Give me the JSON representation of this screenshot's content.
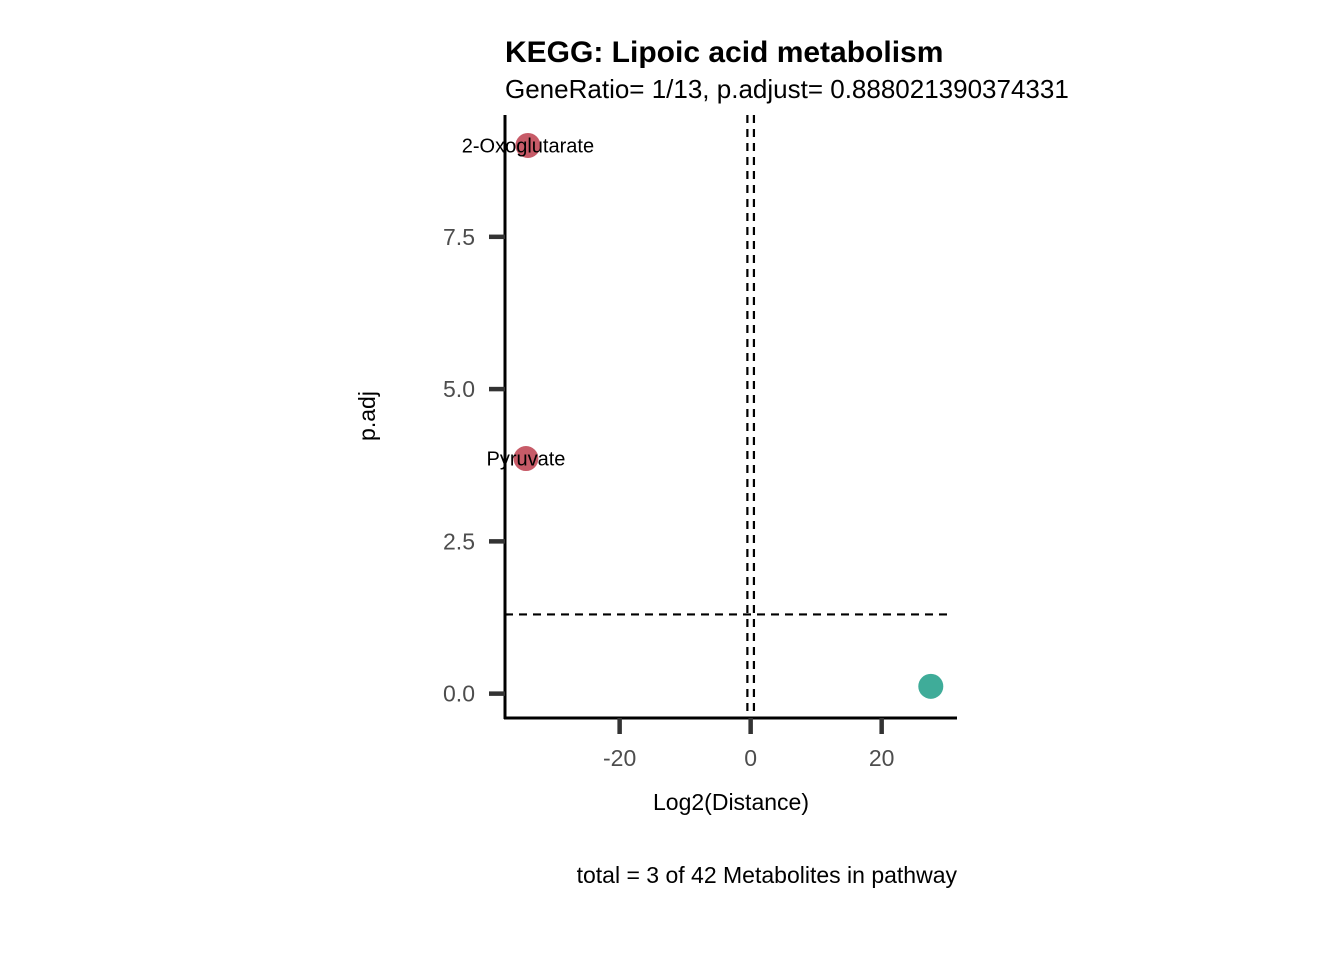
{
  "chart_data": {
    "type": "scatter",
    "title": "KEGG: Lipoic acid metabolism",
    "subtitle": "GeneRatio= 1/13, p.adjust= 0.888021390374331",
    "xlabel": "Log2(Distance)",
    "ylabel": "p.adj",
    "caption": "total = 3 of 42 Metabolites in pathway",
    "xlim": [
      -37.5,
      31.5
    ],
    "ylim": [
      -0.4,
      9.5
    ],
    "xticks": [
      -20,
      0,
      20
    ],
    "xtick_labels": [
      "-20",
      "0",
      "20"
    ],
    "yticks": [
      0.0,
      2.5,
      5.0,
      7.5
    ],
    "ytick_labels": [
      "0.0",
      "2.5",
      "5.0",
      "7.5"
    ],
    "grid": false,
    "reference_lines": {
      "vertical": [
        -0.5,
        0.5
      ],
      "horizontal": [
        1.3
      ]
    },
    "colors": {
      "up": "#c75b68",
      "down": "#3fac99",
      "axis": "#000000",
      "tick": "#333333"
    },
    "points": [
      {
        "x": -34,
        "y": 9.0,
        "label": "2-Oxoglutarate",
        "color": "#c75b68"
      },
      {
        "x": -34.3,
        "y": 3.86,
        "label": "Pyruvate",
        "color": "#c75b68"
      },
      {
        "x": 27.5,
        "y": 0.12,
        "label": "",
        "color": "#3fac99"
      }
    ]
  }
}
